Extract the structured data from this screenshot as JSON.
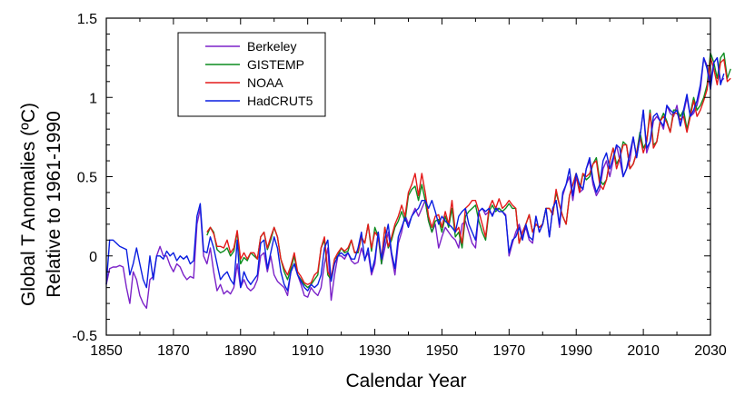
{
  "chart_data": {
    "type": "line",
    "xlabel": "Calendar Year",
    "ylabel_line1": "Global T Anomalies (ºC)",
    "ylabel_line2": "Relative to 1961-1990",
    "xlim": [
      1850,
      2030
    ],
    "ylim": [
      -0.5,
      1.5
    ],
    "x_ticks": [
      1850,
      1870,
      1890,
      1910,
      1930,
      1950,
      1970,
      1990,
      2010,
      2030
    ],
    "x_tick_labels": [
      "1850",
      "1870",
      "1890",
      "1910",
      "1930",
      "1950",
      "1970",
      "1990",
      "2010",
      "2030"
    ],
    "y_ticks": [
      -0.5,
      0,
      0.5,
      1,
      1.5
    ],
    "y_tick_labels": [
      "-0.5",
      "0",
      "0.5",
      "1",
      "1.5"
    ],
    "legend_position": "top-left",
    "series": [
      {
        "name": "Berkeley",
        "color": "#7b22c8",
        "start": 1850,
        "values": [
          -0.18,
          -0.08,
          -0.07,
          -0.07,
          -0.06,
          -0.07,
          -0.2,
          -0.3,
          -0.1,
          -0.15,
          -0.25,
          -0.3,
          -0.33,
          -0.15,
          -0.13,
          0.0,
          0.06,
          0.0,
          0.0,
          -0.06,
          -0.1,
          -0.05,
          -0.07,
          -0.12,
          -0.15,
          -0.13,
          -0.14,
          0.2,
          0.3,
          0.0,
          -0.05,
          0.05,
          -0.1,
          -0.22,
          -0.18,
          -0.24,
          -0.22,
          -0.24,
          -0.2,
          -0.05,
          -0.2,
          -0.15,
          -0.2,
          -0.22,
          -0.2,
          -0.15,
          0.0,
          0.02,
          -0.1,
          0.0,
          -0.12,
          -0.16,
          -0.18,
          -0.2,
          -0.25,
          -0.1,
          -0.05,
          -0.12,
          -0.18,
          -0.25,
          -0.26,
          -0.2,
          -0.23,
          -0.25,
          -0.2,
          -0.05,
          0.05,
          -0.28,
          -0.12,
          0.0,
          0.0,
          -0.02,
          0.02,
          -0.03,
          -0.05,
          -0.04,
          0.05,
          -0.02,
          0.02,
          -0.12,
          -0.05,
          0.15,
          -0.05,
          0.05,
          0.15,
          0.0,
          -0.12,
          0.08,
          0.15,
          0.26,
          0.2,
          0.25,
          0.3,
          0.25,
          0.3,
          0.35,
          0.22,
          0.15,
          0.2,
          0.05,
          0.12,
          0.18,
          0.15,
          0.12,
          0.1,
          0.05,
          0.2,
          0.22,
          0.15,
          0.08,
          0.05,
          0.28,
          0.3,
          0.26,
          0.28,
          0.26,
          0.3,
          0.3,
          0.28,
          0.26,
          0.0,
          0.08,
          0.15,
          0.2,
          0.12,
          0.18,
          0.1,
          0.08,
          0.25,
          0.15,
          0.2,
          0.3,
          0.12,
          0.3,
          0.35,
          0.18,
          0.38,
          0.45,
          0.5,
          0.35,
          0.5,
          0.4,
          0.42,
          0.55,
          0.6,
          0.45,
          0.38,
          0.42,
          0.55,
          0.6,
          0.5,
          0.6,
          0.7,
          0.6,
          0.5,
          0.55,
          0.6,
          0.75,
          0.62,
          0.75,
          0.92,
          0.65,
          0.72,
          0.85,
          0.88,
          0.85,
          0.8,
          0.95,
          0.9,
          0.88,
          0.95,
          0.82,
          0.9,
          1.0,
          0.88,
          0.9,
          0.95,
          1.05,
          1.25,
          1.2,
          1.1,
          1.22,
          1.25,
          1.1,
          1.12
        ]
      },
      {
        "name": "GISTEMP",
        "color": "#0c8c1f",
        "start": 1880,
        "values": [
          0.13,
          0.18,
          0.15,
          0.04,
          0.02,
          0.03,
          0.05,
          0.0,
          0.03,
          0.15,
          -0.05,
          -0.01,
          -0.03,
          0.02,
          0.0,
          -0.02,
          0.12,
          0.15,
          0.04,
          0.1,
          0.18,
          0.12,
          -0.02,
          -0.1,
          -0.15,
          -0.08,
          0.0,
          -0.12,
          -0.15,
          -0.18,
          -0.2,
          -0.18,
          -0.15,
          -0.12,
          0.05,
          0.1,
          -0.12,
          -0.15,
          -0.02,
          0.0,
          0.05,
          0.02,
          0.03,
          0.1,
          0.02,
          0.02,
          0.12,
          0.08,
          0.2,
          0.03,
          0.18,
          0.12,
          -0.05,
          0.18,
          0.05,
          0.1,
          0.18,
          0.22,
          0.28,
          0.22,
          0.38,
          0.42,
          0.44,
          0.35,
          0.45,
          0.35,
          0.22,
          0.15,
          0.22,
          0.23,
          0.15,
          0.25,
          0.18,
          0.3,
          0.12,
          0.15,
          0.05,
          0.25,
          0.28,
          0.3,
          0.32,
          0.22,
          0.15,
          0.1,
          0.28,
          0.32,
          0.28,
          0.3,
          0.28,
          0.3,
          0.33,
          0.3,
          0.3,
          0.08,
          0.15,
          0.2,
          0.26,
          0.15,
          0.2,
          0.18,
          0.2,
          0.3,
          0.3,
          0.26,
          0.4,
          0.32,
          0.25,
          0.2,
          0.38,
          0.45,
          0.52,
          0.42,
          0.52,
          0.48,
          0.5,
          0.58,
          0.62,
          0.48,
          0.45,
          0.48,
          0.6,
          0.68,
          0.58,
          0.62,
          0.72,
          0.7,
          0.55,
          0.58,
          0.65,
          0.78,
          0.68,
          0.72,
          0.92,
          0.7,
          0.72,
          0.85,
          0.9,
          0.85,
          0.78,
          0.92,
          0.92,
          0.88,
          0.92,
          0.8,
          0.9,
          1.0,
          0.92,
          0.95,
          1.0,
          1.08,
          1.28,
          1.22,
          1.12,
          1.25,
          1.28,
          1.12,
          1.18
        ]
      },
      {
        "name": "NOAA",
        "color": "#e41a1a",
        "start": 1880,
        "values": [
          0.15,
          0.18,
          0.14,
          0.06,
          0.06,
          0.05,
          0.1,
          0.02,
          0.05,
          0.16,
          -0.02,
          0.02,
          -0.02,
          0.02,
          0.02,
          -0.02,
          0.12,
          0.15,
          0.05,
          0.12,
          0.18,
          0.12,
          -0.02,
          -0.08,
          -0.12,
          -0.06,
          0.02,
          -0.1,
          -0.13,
          -0.17,
          -0.18,
          -0.17,
          -0.12,
          -0.1,
          0.05,
          0.12,
          -0.1,
          -0.14,
          -0.02,
          0.02,
          0.05,
          0.03,
          0.05,
          0.1,
          0.02,
          0.03,
          0.12,
          0.08,
          0.2,
          0.05,
          0.15,
          0.12,
          -0.02,
          0.18,
          0.06,
          0.12,
          0.2,
          0.25,
          0.32,
          0.25,
          0.4,
          0.45,
          0.52,
          0.38,
          0.52,
          0.4,
          0.25,
          0.18,
          0.25,
          0.26,
          0.18,
          0.28,
          0.2,
          0.35,
          0.15,
          0.18,
          0.08,
          0.3,
          0.32,
          0.35,
          0.35,
          0.28,
          0.2,
          0.12,
          0.3,
          0.35,
          0.3,
          0.36,
          0.3,
          0.32,
          0.35,
          0.32,
          0.3,
          0.08,
          0.15,
          0.2,
          0.26,
          0.15,
          0.2,
          0.18,
          0.2,
          0.3,
          0.3,
          0.26,
          0.42,
          0.32,
          0.25,
          0.2,
          0.38,
          0.45,
          0.52,
          0.4,
          0.52,
          0.5,
          0.52,
          0.58,
          0.6,
          0.45,
          0.42,
          0.48,
          0.6,
          0.68,
          0.55,
          0.62,
          0.7,
          0.7,
          0.55,
          0.58,
          0.65,
          0.75,
          0.65,
          0.72,
          0.9,
          0.68,
          0.72,
          0.85,
          0.88,
          0.84,
          0.78,
          0.9,
          0.9,
          0.86,
          0.88,
          0.78,
          0.88,
          0.98,
          0.88,
          0.92,
          0.98,
          1.05,
          1.25,
          1.18,
          1.08,
          1.22,
          1.24,
          1.1,
          1.12
        ]
      },
      {
        "name": "HadCRUT5",
        "color": "#0a1ee0",
        "start": 1850,
        "values": [
          -0.18,
          0.1,
          0.1,
          0.08,
          0.06,
          0.05,
          0.04,
          -0.12,
          -0.05,
          0.05,
          -0.05,
          -0.15,
          -0.2,
          0.0,
          -0.15,
          0.0,
          0.0,
          -0.02,
          0.03,
          0.0,
          0.02,
          -0.03,
          0.0,
          -0.02,
          0.0,
          -0.05,
          -0.03,
          0.25,
          0.33,
          0.03,
          0.02,
          0.12,
          0.05,
          -0.05,
          -0.15,
          -0.12,
          -0.1,
          -0.15,
          -0.18,
          0.1,
          -0.2,
          -0.1,
          -0.15,
          -0.18,
          -0.15,
          -0.12,
          0.08,
          0.1,
          -0.08,
          0.02,
          0.12,
          0.05,
          -0.1,
          -0.18,
          -0.22,
          -0.1,
          -0.05,
          -0.12,
          -0.16,
          -0.2,
          -0.22,
          -0.18,
          -0.2,
          -0.18,
          -0.12,
          0.05,
          0.1,
          -0.16,
          -0.05,
          0.0,
          0.02,
          0.0,
          0.02,
          -0.02,
          -0.02,
          0.05,
          0.15,
          -0.03,
          0.05,
          -0.1,
          -0.02,
          0.15,
          -0.02,
          0.1,
          0.2,
          0.02,
          -0.08,
          0.12,
          0.18,
          0.24,
          0.18,
          0.25,
          0.28,
          0.3,
          0.35,
          0.35,
          0.3,
          0.35,
          0.28,
          0.2,
          0.25,
          0.22,
          0.2,
          0.18,
          0.15,
          0.25,
          0.28,
          0.3,
          0.2,
          0.15,
          0.1,
          0.28,
          0.3,
          0.28,
          0.3,
          0.25,
          0.3,
          0.28,
          0.28,
          0.25,
          0.02,
          0.1,
          0.12,
          0.18,
          0.1,
          0.2,
          0.12,
          0.1,
          0.25,
          0.15,
          0.2,
          0.3,
          0.12,
          0.3,
          0.35,
          0.2,
          0.4,
          0.45,
          0.55,
          0.38,
          0.52,
          0.45,
          0.42,
          0.55,
          0.62,
          0.48,
          0.4,
          0.45,
          0.6,
          0.65,
          0.55,
          0.62,
          0.7,
          0.68,
          0.5,
          0.55,
          0.65,
          0.75,
          0.62,
          0.75,
          0.92,
          0.68,
          0.72,
          0.88,
          0.9,
          0.85,
          0.82,
          0.95,
          0.92,
          0.9,
          0.92,
          0.82,
          0.92,
          1.02,
          0.88,
          0.92,
          0.98,
          1.08,
          1.25,
          1.18,
          1.05,
          1.22,
          1.25,
          1.08,
          1.15
        ]
      }
    ]
  }
}
